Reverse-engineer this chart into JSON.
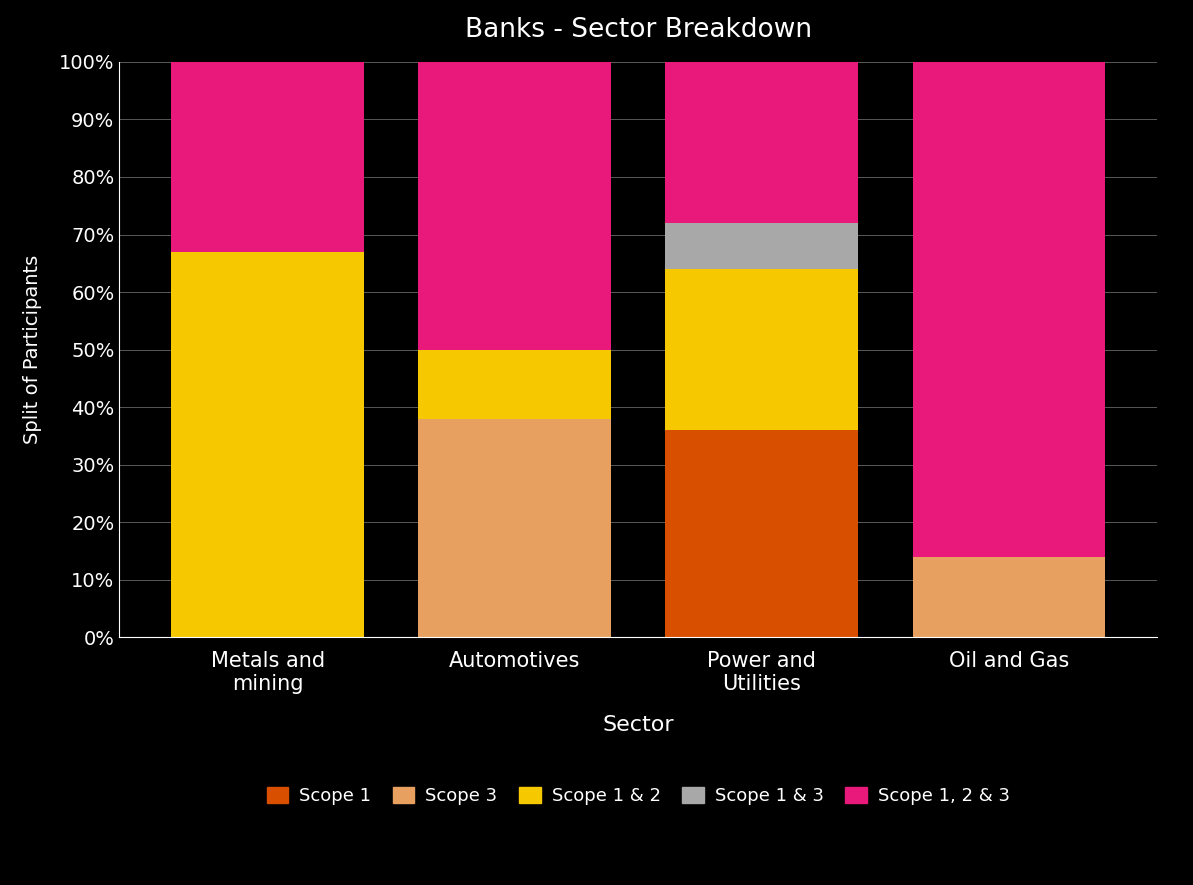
{
  "title": "Banks - Sector Breakdown",
  "xlabel": "Sector",
  "ylabel": "Split of Participants",
  "categories": [
    "Metals and\nmining",
    "Automotives",
    "Power and\nUtilities",
    "Oil and Gas"
  ],
  "segments": {
    "Scope 1": {
      "color": "#D94F00",
      "values": [
        0,
        0,
        0.36,
        0
      ]
    },
    "Scope 3": {
      "color": "#E8A060",
      "values": [
        0,
        0.38,
        0,
        0.14
      ]
    },
    "Scope 1 & 2": {
      "color": "#F5C800",
      "values": [
        0.67,
        0.12,
        0.28,
        0
      ]
    },
    "Scope 1 & 3": {
      "color": "#A8A8A8",
      "values": [
        0,
        0,
        0.08,
        0
      ]
    },
    "Scope 1, 2 & 3": {
      "color": "#E8197A",
      "values": [
        0.33,
        0.5,
        0.28,
        0.86
      ]
    }
  },
  "background_color": "#000000",
  "text_color": "#ffffff",
  "grid_color": "#ffffff",
  "bar_width": 0.78,
  "ylim": [
    0,
    1.0
  ],
  "yticks": [
    0,
    0.1,
    0.2,
    0.3,
    0.4,
    0.5,
    0.6,
    0.7,
    0.8,
    0.9,
    1.0
  ],
  "ytick_labels": [
    "0%",
    "10%",
    "20%",
    "30%",
    "40%",
    "50%",
    "60%",
    "70%",
    "80%",
    "90%",
    "100%"
  ]
}
